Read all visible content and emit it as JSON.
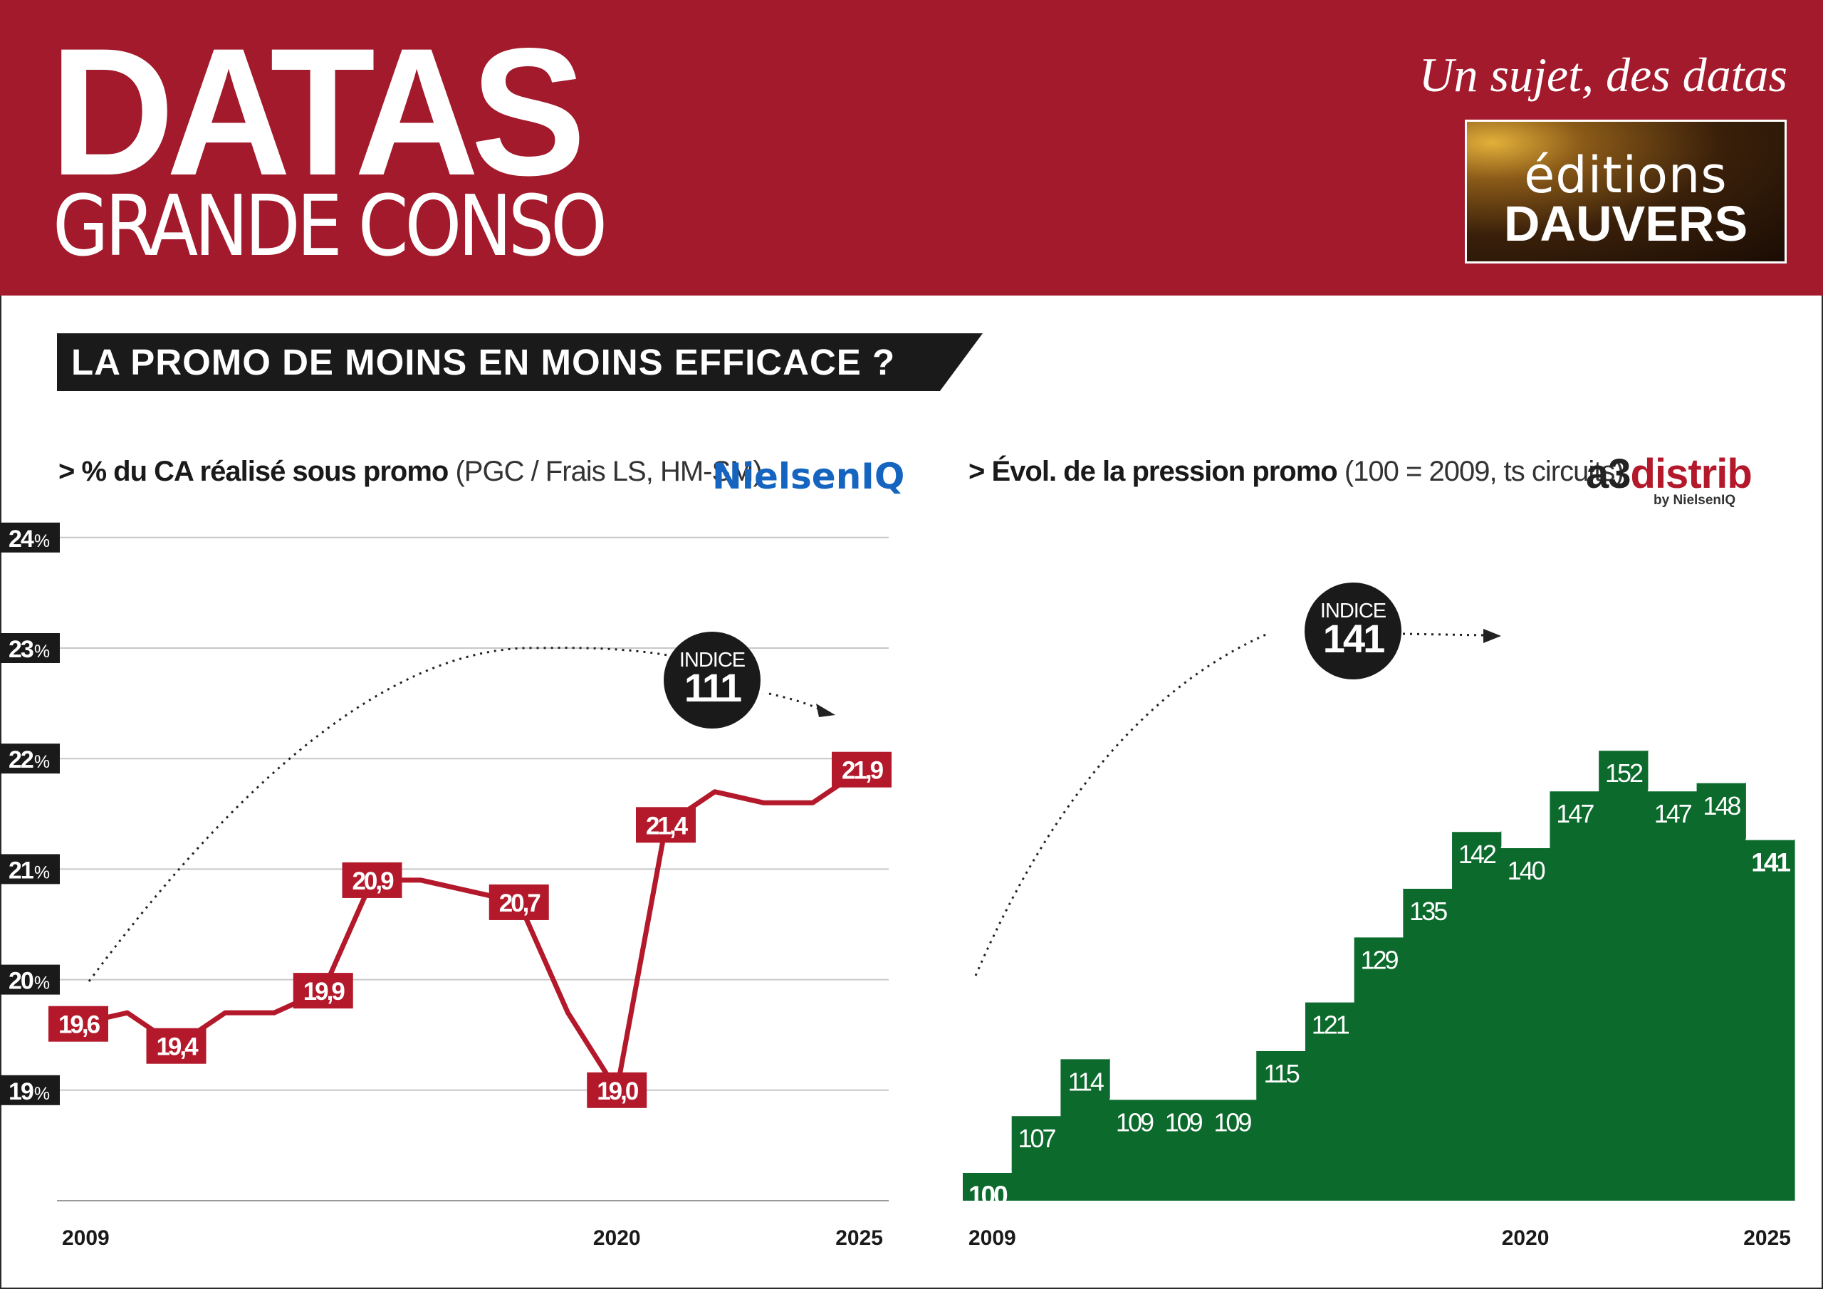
{
  "header": {
    "brand_main": "DATAS",
    "brand_sub": "GRANDE CONSO",
    "tagline": "Un sujet, des datas",
    "logo_line1": "éditions",
    "logo_line2": "DAUVERS"
  },
  "banner": {
    "title": "LA PROMO DE MOINS EN MOINS EFFICACE ?"
  },
  "left_chart": {
    "subtitle_bold": "> % du CA réalisé sous promo",
    "subtitle_light": "(PGC / Frais LS, HM-SM)",
    "source_logo": "NielsenIQ",
    "indice_label": "INDICE",
    "indice_value": "111"
  },
  "right_chart": {
    "subtitle_bold": "> Évol. de la pression promo",
    "subtitle_light": "(100 = 2009, ts circuits)",
    "source_logo_a": "a3",
    "source_logo_b": "distrib",
    "source_logo_by": "by NielsenIQ",
    "indice_label": "INDICE",
    "indice_value": "141"
  },
  "colors": {
    "header_red": "#a21a2b",
    "line_red": "#b3192b",
    "bar_green": "#0b6a2c",
    "dark": "#1a1a1a"
  },
  "chart_data": [
    {
      "type": "line",
      "x": [
        2009,
        2010,
        2011,
        2012,
        2013,
        2014,
        2015,
        2016,
        2017,
        2018,
        2019,
        2020,
        2021,
        2022,
        2023,
        2024,
        2025
      ],
      "series": [
        {
          "values": [
            19.6,
            19.7,
            19.4,
            19.7,
            19.7,
            19.9,
            20.9,
            20.9,
            20.8,
            20.7,
            19.7,
            19.0,
            21.4,
            21.7,
            21.6,
            21.6,
            21.9
          ]
        }
      ],
      "data_labels": [
        {
          "x": 2009,
          "text": "19,6"
        },
        {
          "x": 2011,
          "text": "19,4"
        },
        {
          "x": 2014,
          "text": "19,9"
        },
        {
          "x": 2015,
          "text": "20,9"
        },
        {
          "x": 2018,
          "text": "20,7"
        },
        {
          "x": 2020,
          "text": "19,0"
        },
        {
          "x": 2021,
          "text": "21,4"
        },
        {
          "x": 2025,
          "text": "21,9"
        }
      ],
      "y_ticks": [
        {
          "value": 24,
          "num": "24",
          "unit": "%"
        },
        {
          "value": 23,
          "num": "23",
          "unit": "%"
        },
        {
          "value": 22,
          "num": "22",
          "unit": "%"
        },
        {
          "value": 21,
          "num": "21",
          "unit": "%"
        },
        {
          "value": 20,
          "num": "20",
          "unit": "%"
        },
        {
          "value": 19,
          "num": "19",
          "unit": "%"
        }
      ],
      "x_tick_labels": [
        {
          "value": 2009,
          "text": "2009"
        },
        {
          "value": 2020,
          "text": "2020"
        },
        {
          "value": 2025,
          "text": "2025"
        }
      ],
      "ylim": [
        18,
        24
      ],
      "grid": true
    },
    {
      "type": "bar",
      "x": [
        2009,
        2010,
        2011,
        2012,
        2013,
        2014,
        2015,
        2016,
        2017,
        2018,
        2019,
        2020,
        2021,
        2022,
        2023,
        2024,
        2025
      ],
      "values": [
        100,
        107,
        114,
        109,
        109,
        109,
        115,
        121,
        129,
        135,
        142,
        140,
        147,
        152,
        147,
        148,
        141
      ],
      "labels": [
        "100",
        "107",
        "114",
        "109",
        "109",
        "109",
        "115",
        "121",
        "129",
        "135",
        "142",
        "140",
        "147",
        "152",
        "147",
        "148",
        "141"
      ],
      "x_tick_labels": [
        {
          "value": 2009,
          "text": "2009"
        },
        {
          "value": 2020,
          "text": "2020"
        },
        {
          "value": 2025,
          "text": "2025"
        }
      ],
      "ylim": [
        100,
        160
      ]
    }
  ]
}
